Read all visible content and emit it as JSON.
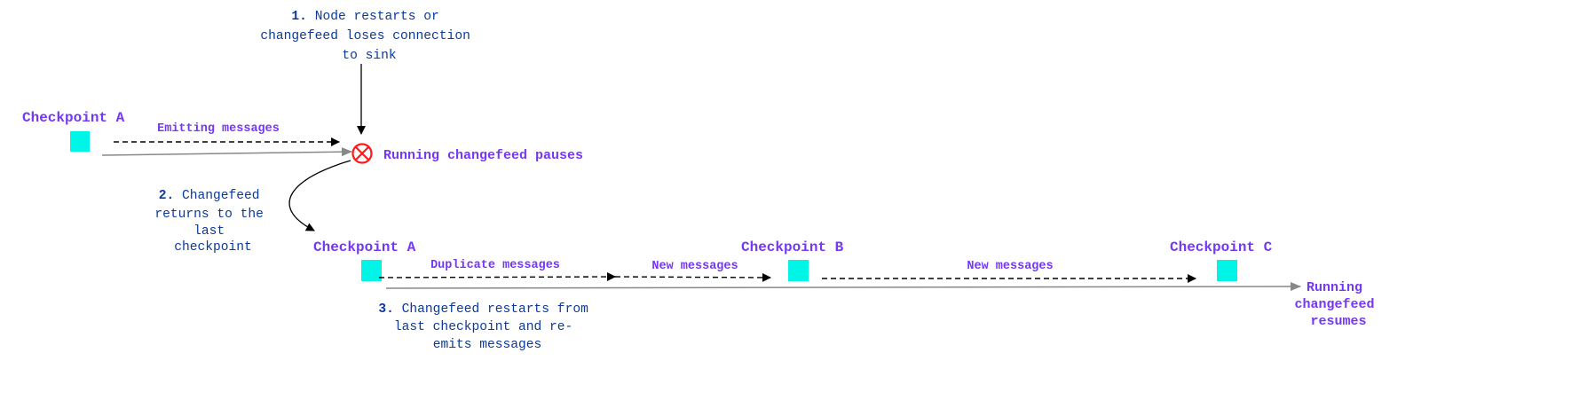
{
  "colors": {
    "checkpoint": "#00f5e6",
    "purple_text": "#7438f5",
    "note_text": "#0b3a9c",
    "error": "#ff1a1a",
    "timeline": "#888888"
  },
  "notes": {
    "n1": {
      "num": "1.",
      "lines": [
        "Node restarts or",
        "changefeed loses connection",
        "to sink"
      ]
    },
    "n2": {
      "num": "2.",
      "lines": [
        "Changefeed",
        "returns to the",
        "last",
        "checkpoint"
      ]
    },
    "n3": {
      "num": "3.",
      "lines": [
        "Changefeed restarts from",
        "last checkpoint and re-",
        "emits messages"
      ]
    }
  },
  "top_row": {
    "checkpoint": "Checkpoint A",
    "emitting": "Emitting messages",
    "pause_icon": "error-x-circle-icon",
    "pause_label": "Running changefeed pauses"
  },
  "bottom_row": {
    "checkpoints": [
      "Checkpoint A",
      "Checkpoint B",
      "Checkpoint C"
    ],
    "segments": [
      "Duplicate messages",
      "New messages",
      "New messages"
    ],
    "resume_lines": [
      "Running",
      "changefeed",
      "resumes"
    ]
  }
}
